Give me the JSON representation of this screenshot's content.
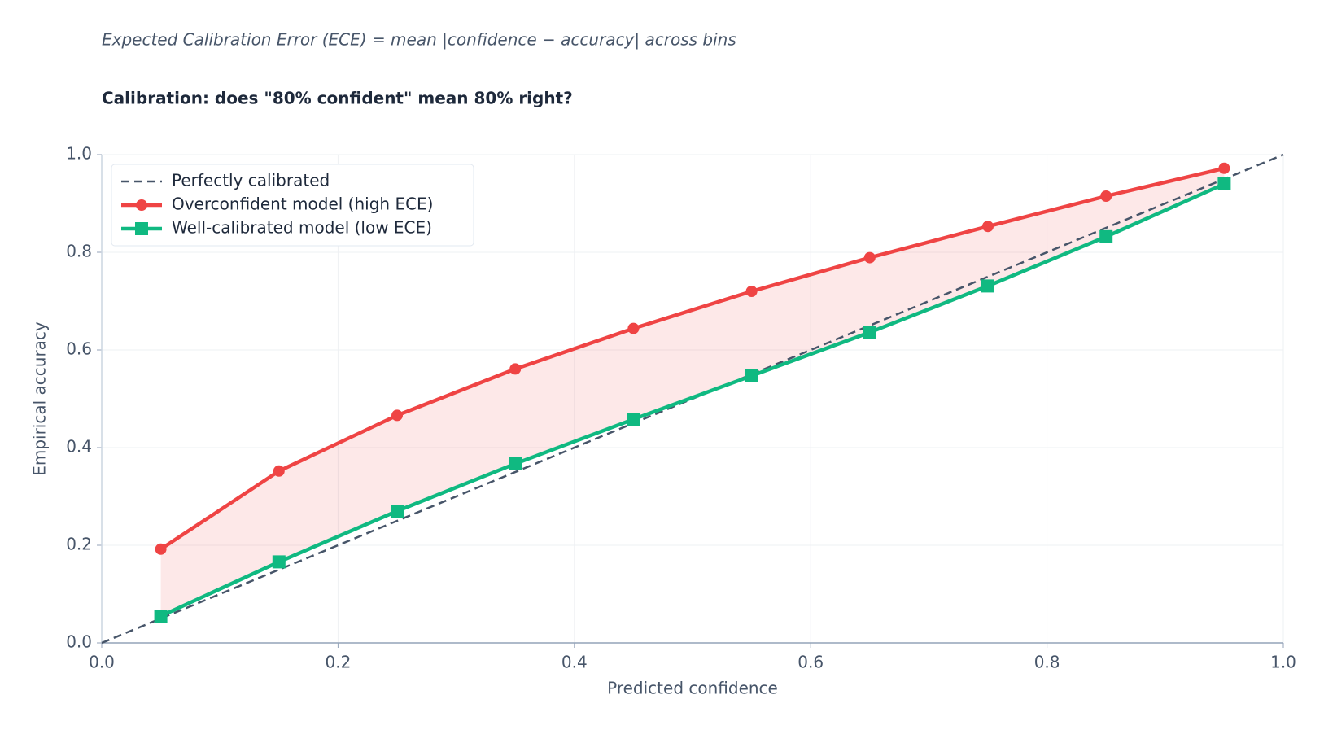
{
  "chart_data": {
    "type": "line",
    "subtitle": "Expected Calibration Error (ECE) = mean |confidence − accuracy| across bins",
    "title": "Calibration: does \"80% confident\" mean 80% right?",
    "xlabel": "Predicted confidence",
    "ylabel": "Empirical accuracy",
    "xlim": [
      0,
      1
    ],
    "ylim": [
      0,
      1
    ],
    "xticks": [
      {
        "value": 0,
        "label": "0.0"
      },
      0.2,
      0.4,
      0.6,
      0.8,
      {
        "value": 1,
        "label": "1.0"
      }
    ],
    "yticks": [
      {
        "value": 0,
        "label": "0.0"
      },
      0.2,
      0.4,
      0.6,
      0.8,
      {
        "value": 1,
        "label": "1.0"
      }
    ],
    "grid": true,
    "legend": "upper-left",
    "series": [
      {
        "name": "Perfectly calibrated",
        "color": "#475569",
        "dash": true,
        "marker": "none",
        "x": [
          0,
          1
        ],
        "values": [
          0,
          1
        ]
      },
      {
        "name": "Overconfident model (high ECE)",
        "color": "#ef4444",
        "marker": "circle",
        "x": [
          0.05,
          0.15,
          0.25,
          0.35,
          0.45,
          0.55,
          0.65,
          0.75,
          0.85,
          0.95
        ],
        "values": [
          0.192,
          0.352,
          0.466,
          0.561,
          0.644,
          0.72,
          0.789,
          0.853,
          0.915,
          0.972
        ]
      },
      {
        "name": "Well-calibrated model (low ECE)",
        "color": "#10b981",
        "marker": "square",
        "x": [
          0.05,
          0.15,
          0.25,
          0.35,
          0.45,
          0.55,
          0.65,
          0.75,
          0.85,
          0.95
        ],
        "values": [
          0.055,
          0.166,
          0.27,
          0.367,
          0.458,
          0.547,
          0.636,
          0.731,
          0.832,
          0.94
        ]
      }
    ]
  }
}
